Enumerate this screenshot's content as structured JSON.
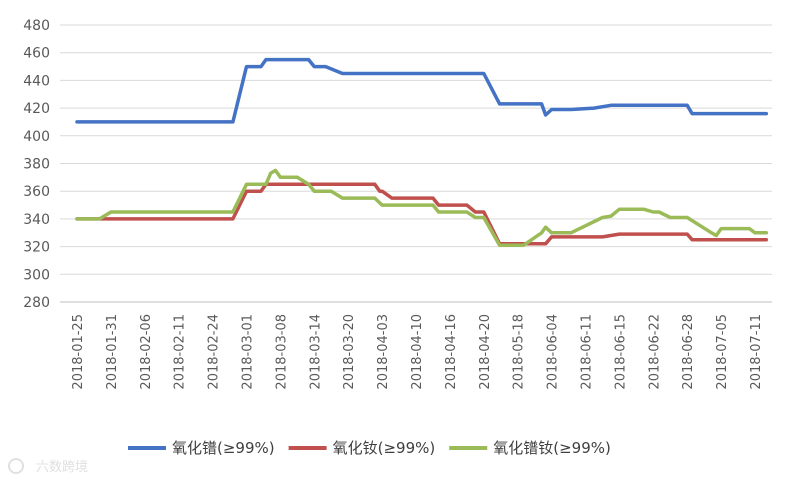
{
  "chart_data": {
    "type": "line",
    "title": "",
    "xlabel": "",
    "ylabel": "",
    "ylim": [
      280,
      480
    ],
    "yticks": [
      280,
      300,
      320,
      340,
      360,
      380,
      400,
      420,
      440,
      460,
      480
    ],
    "grid": "horizontal",
    "legend_position": "bottom",
    "x_tick_labels": [
      "2018-01-25",
      "2018-01-31",
      "2018-02-06",
      "2018-02-11",
      "2018-02-24",
      "2018-03-01",
      "2018-03-08",
      "2018-03-14",
      "2018-03-20",
      "2018-04-03",
      "2018-04-10",
      "2018-04-16",
      "2018-04-20",
      "2018-05-18",
      "2018-06-04",
      "2018-06-11",
      "2018-06-15",
      "2018-06-22",
      "2018-06-28",
      "2018-07-05",
      "2018-07-11"
    ],
    "series": [
      {
        "name": "氧化镨(≥99%)",
        "color": "#4472c4",
        "points": [
          [
            "2018-01-25",
            410
          ],
          [
            "2018-02-27",
            410
          ],
          [
            "2018-03-01",
            450
          ],
          [
            "2018-03-04",
            450
          ],
          [
            "2018-03-05",
            455
          ],
          [
            "2018-03-13",
            455
          ],
          [
            "2018-03-14",
            450
          ],
          [
            "2018-03-16",
            450
          ],
          [
            "2018-03-19",
            445
          ],
          [
            "2018-04-20",
            445
          ],
          [
            "2018-05-03",
            423
          ],
          [
            "2018-05-30",
            423
          ],
          [
            "2018-06-01",
            415
          ],
          [
            "2018-06-04",
            419
          ],
          [
            "2018-06-08",
            419
          ],
          [
            "2018-06-12",
            420
          ],
          [
            "2018-06-14",
            422
          ],
          [
            "2018-06-28",
            422
          ],
          [
            "2018-06-29",
            416
          ],
          [
            "2018-07-13",
            416
          ]
        ]
      },
      {
        "name": "氧化钕(≥99%)",
        "color": "#c0504d",
        "points": [
          [
            "2018-01-25",
            340
          ],
          [
            "2018-02-27",
            340
          ],
          [
            "2018-03-01",
            360
          ],
          [
            "2018-03-04",
            360
          ],
          [
            "2018-03-05",
            365
          ],
          [
            "2018-03-31",
            365
          ],
          [
            "2018-04-02",
            360
          ],
          [
            "2018-04-03",
            360
          ],
          [
            "2018-04-05",
            355
          ],
          [
            "2018-04-13",
            355
          ],
          [
            "2018-04-14",
            350
          ],
          [
            "2018-04-18",
            350
          ],
          [
            "2018-04-19",
            345
          ],
          [
            "2018-04-20",
            345
          ],
          [
            "2018-05-03",
            322
          ],
          [
            "2018-06-01",
            322
          ],
          [
            "2018-06-04",
            327
          ],
          [
            "2018-06-13",
            327
          ],
          [
            "2018-06-15",
            329
          ],
          [
            "2018-06-28",
            329
          ],
          [
            "2018-06-29",
            325
          ],
          [
            "2018-07-13",
            325
          ]
        ]
      },
      {
        "name": "氧化镨钕(≥99%)",
        "color": "#9bbb59",
        "points": [
          [
            "2018-01-25",
            340
          ],
          [
            "2018-01-29",
            340
          ],
          [
            "2018-01-31",
            345
          ],
          [
            "2018-02-27",
            345
          ],
          [
            "2018-03-01",
            365
          ],
          [
            "2018-03-05",
            365
          ],
          [
            "2018-03-06",
            373
          ],
          [
            "2018-03-07",
            375
          ],
          [
            "2018-03-08",
            370
          ],
          [
            "2018-03-11",
            370
          ],
          [
            "2018-03-13",
            365
          ],
          [
            "2018-03-14",
            360
          ],
          [
            "2018-03-17",
            360
          ],
          [
            "2018-03-19",
            355
          ],
          [
            "2018-03-31",
            355
          ],
          [
            "2018-04-03",
            350
          ],
          [
            "2018-04-13",
            350
          ],
          [
            "2018-04-14",
            345
          ],
          [
            "2018-04-18",
            345
          ],
          [
            "2018-04-19",
            341
          ],
          [
            "2018-04-20",
            341
          ],
          [
            "2018-05-03",
            321
          ],
          [
            "2018-05-21",
            321
          ],
          [
            "2018-05-30",
            330
          ],
          [
            "2018-06-01",
            334
          ],
          [
            "2018-06-04",
            330
          ],
          [
            "2018-06-08",
            330
          ],
          [
            "2018-06-13",
            341
          ],
          [
            "2018-06-14",
            342
          ],
          [
            "2018-06-15",
            347
          ],
          [
            "2018-06-20",
            347
          ],
          [
            "2018-06-22",
            345
          ],
          [
            "2018-06-23",
            345
          ],
          [
            "2018-06-25",
            341
          ],
          [
            "2018-06-28",
            341
          ],
          [
            "2018-07-03",
            330
          ],
          [
            "2018-07-04",
            328
          ],
          [
            "2018-07-05",
            333
          ],
          [
            "2018-07-10",
            333
          ],
          [
            "2018-07-11",
            330
          ],
          [
            "2018-07-13",
            330
          ]
        ]
      }
    ]
  },
  "watermark": {
    "text": "六数跨境"
  }
}
